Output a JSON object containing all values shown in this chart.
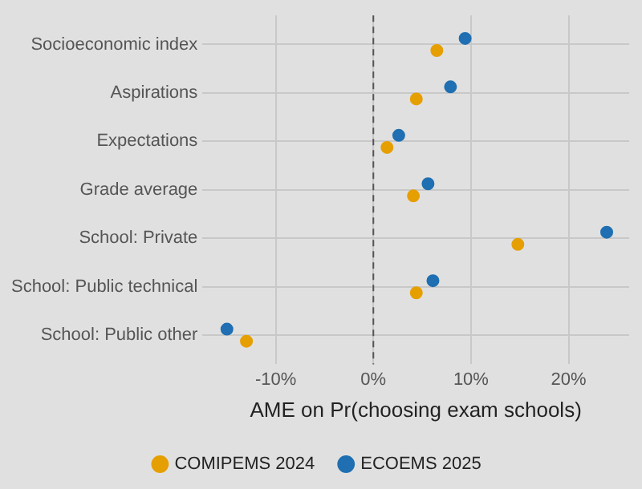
{
  "chart_data": {
    "type": "scatter",
    "orientation": "horizontal",
    "xlabel": "AME on Pr(choosing exam schools)",
    "categories": [
      "Socioeconomic index",
      "Aspirations",
      "Expectations",
      "Grade average",
      "School: Private",
      "School: Public technical",
      "School: Public other"
    ],
    "series": [
      {
        "name": "COMIPEMS 2024",
        "color": "#e69f00",
        "values": [
          6.5,
          4.4,
          1.4,
          4.1,
          14.8,
          4.4,
          -13.0
        ]
      },
      {
        "name": "ECOEMS 2025",
        "color": "#1f6fb2",
        "values": [
          9.4,
          7.9,
          2.6,
          5.6,
          23.9,
          6.1,
          -15.0
        ]
      }
    ],
    "xlim": [
      -17.5,
      26.2
    ],
    "xticks": [
      {
        "value": -10,
        "label": "-10%"
      },
      {
        "value": 0,
        "label": "0%"
      },
      {
        "value": 10,
        "label": "10%"
      },
      {
        "value": 20,
        "label": "20%"
      }
    ],
    "ref_lines": [
      {
        "axis": "x",
        "value": 0,
        "line_style": "dashed",
        "color": "#555555"
      }
    ],
    "grid": true,
    "legend": "bottom",
    "marker": "circle"
  }
}
